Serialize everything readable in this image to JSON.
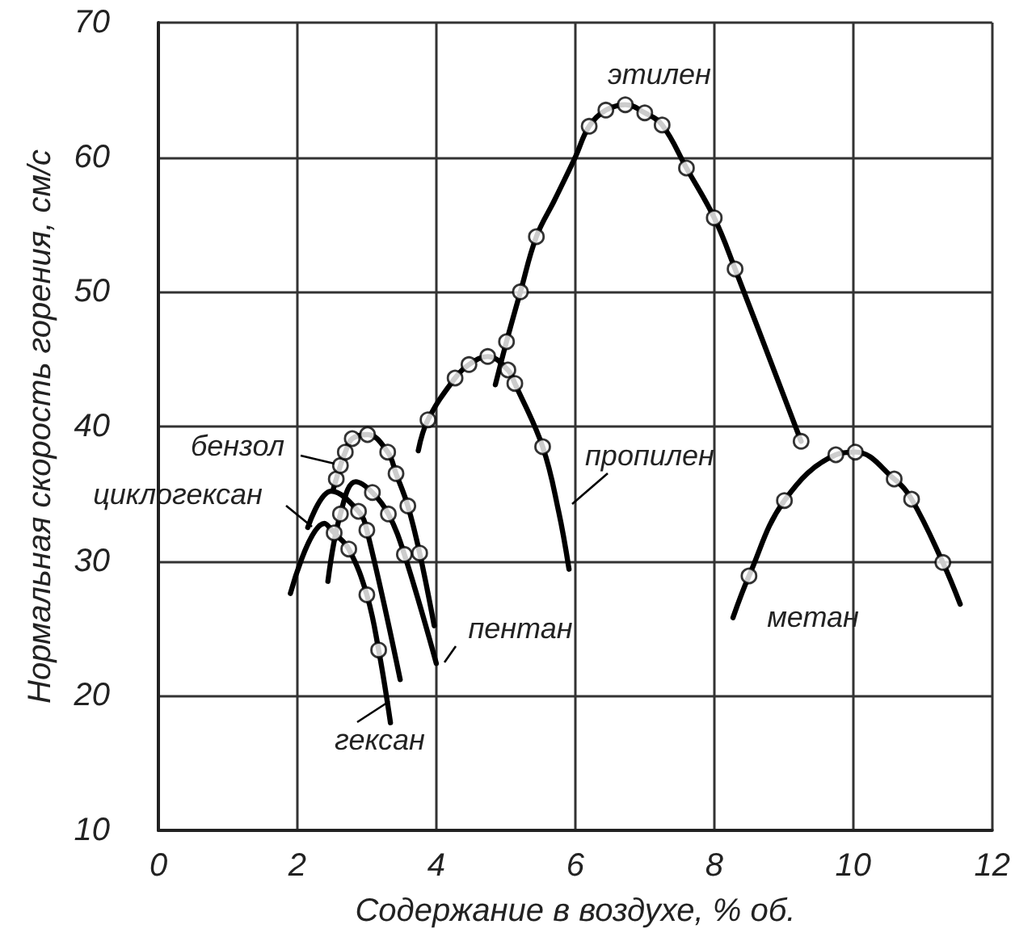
{
  "chart_data": {
    "type": "line",
    "xlabel": "Содержание в воздухе, % об.",
    "ylabel": "Нормальная скорость горения, см/с",
    "xlim": [
      0,
      12
    ],
    "xticks": [
      0,
      2,
      4,
      6,
      8,
      10,
      12
    ],
    "ylim": [
      10,
      70
    ],
    "yticks": [
      10,
      20,
      30,
      40,
      50,
      60,
      70
    ],
    "grid": true,
    "series": [
      {
        "name": "этилен",
        "color": "#000000",
        "marker": "none",
        "x": [
          4.85,
          5.01,
          5.21,
          5.44,
          5.7,
          6.0,
          6.2,
          6.44,
          6.72,
          7.0,
          7.25,
          7.6,
          8.0,
          8.3,
          9.25
        ],
        "values": [
          43.1,
          46.3,
          50.0,
          54.1,
          56.8,
          60.0,
          62.3,
          63.5,
          63.9,
          63.3,
          62.4,
          59.2,
          55.5,
          51.7,
          38.9
        ]
      },
      {
        "type": "scatter",
        "color": "#000000",
        "marker": "circle",
        "x": [
          5.01,
          5.21,
          5.44,
          6.2,
          6.44,
          6.72,
          7.0,
          7.25,
          7.6,
          8.0,
          8.3,
          9.25
        ],
        "values": [
          46.3,
          50.0,
          54.1,
          62.3,
          63.5,
          63.9,
          63.3,
          62.4,
          59.2,
          55.5,
          51.7,
          38.9
        ]
      },
      {
        "name": "пропилен",
        "color": "#000000",
        "marker": "none",
        "x": [
          3.74,
          3.88,
          4.27,
          4.47,
          4.74,
          5.03,
          5.13,
          5.53,
          5.76,
          5.91
        ],
        "values": [
          38.2,
          40.5,
          43.6,
          44.6,
          45.2,
          44.2,
          43.2,
          38.5,
          33.7,
          29.4
        ]
      },
      {
        "type": "scatter",
        "color": "#000000",
        "marker": "circle",
        "x": [
          3.88,
          4.27,
          4.47,
          4.74,
          5.03,
          5.13,
          5.53
        ],
        "values": [
          40.5,
          43.6,
          44.6,
          45.2,
          44.2,
          43.2,
          38.5
        ]
      },
      {
        "name": "метан",
        "color": "#000000",
        "marker": "none",
        "x": [
          8.27,
          8.5,
          9.01,
          9.75,
          10.03,
          10.59,
          10.84,
          11.29,
          11.54
        ],
        "values": [
          25.8,
          28.9,
          34.5,
          37.9,
          38.1,
          36.1,
          34.6,
          29.9,
          26.8
        ]
      },
      {
        "type": "scatter",
        "color": "#000000",
        "marker": "circle",
        "x": [
          8.5,
          9.01,
          9.75,
          10.03,
          10.59,
          10.84,
          11.29
        ],
        "values": [
          28.9,
          34.5,
          37.9,
          38.1,
          36.1,
          34.6,
          29.9
        ]
      },
      {
        "name": "бензол",
        "color": "#000000",
        "marker": "none",
        "x": [
          2.52,
          2.56,
          2.62,
          2.69,
          2.79,
          3.01,
          3.3,
          3.42,
          3.59,
          3.76,
          3.97
        ],
        "values": [
          35.4,
          36.1,
          37.1,
          38.1,
          39.1,
          39.4,
          38.1,
          36.5,
          34.1,
          30.6,
          25.2
        ]
      },
      {
        "type": "scatter",
        "color": "#000000",
        "marker": "circle",
        "x": [
          2.56,
          2.62,
          2.69,
          2.79,
          3.01,
          3.3,
          3.42,
          3.59,
          3.76
        ],
        "values": [
          36.1,
          37.1,
          38.1,
          39.1,
          39.4,
          38.1,
          36.5,
          34.1,
          30.6
        ]
      },
      {
        "name": "циклогексан",
        "color": "#000000",
        "marker": "none",
        "x": [
          2.15,
          2.49,
          2.88,
          3.0,
          3.48
        ],
        "values": [
          32.5,
          35.2,
          33.7,
          32.3,
          21.2
        ]
      },
      {
        "type": "scatter",
        "color": "#000000",
        "marker": "circle",
        "x": [
          2.88,
          3.0
        ],
        "values": [
          33.7,
          32.3
        ]
      },
      {
        "name": "пентан",
        "color": "#000000",
        "marker": "none",
        "x": [
          2.44,
          2.62,
          2.84,
          3.08,
          3.31,
          3.54,
          4.0
        ],
        "values": [
          28.5,
          33.5,
          35.9,
          35.1,
          33.5,
          30.5,
          22.4
        ]
      },
      {
        "type": "scatter",
        "color": "#000000",
        "marker": "circle",
        "x": [
          2.62,
          3.08,
          3.31,
          3.54
        ],
        "values": [
          33.5,
          35.1,
          33.5,
          30.5
        ]
      },
      {
        "name": "гексан",
        "color": "#000000",
        "marker": "none",
        "x": [
          1.9,
          2.39,
          2.53,
          2.74,
          3.0,
          3.17,
          3.34
        ],
        "values": [
          27.6,
          32.8,
          32.1,
          30.9,
          27.5,
          23.4,
          18.0
        ]
      },
      {
        "type": "scatter",
        "color": "#000000",
        "marker": "circle",
        "x": [
          2.53,
          2.74,
          3.0,
          3.17
        ],
        "values": [
          32.1,
          30.9,
          27.5,
          23.4
        ]
      }
    ]
  }
}
